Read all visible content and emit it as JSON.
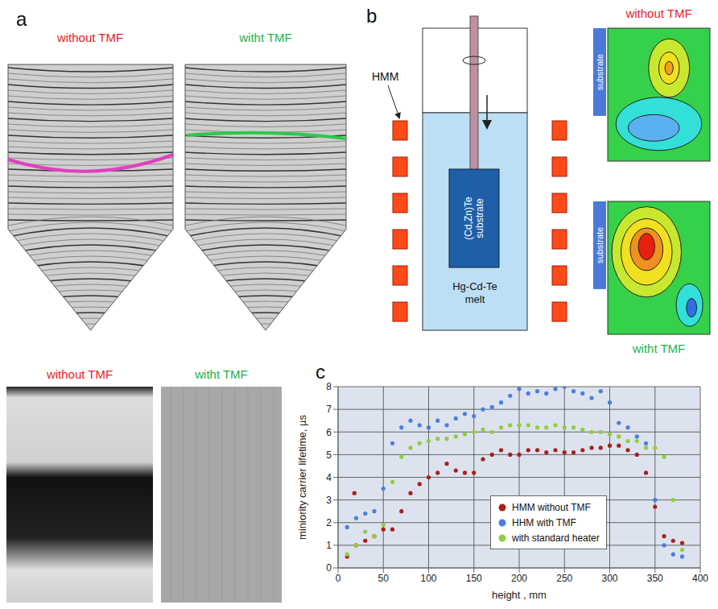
{
  "panel_a": {
    "label": "a",
    "images": [
      {
        "title": "without TMF",
        "color": "#e8202a"
      },
      {
        "title": "witht TMF",
        "color": "#22b24c"
      }
    ]
  },
  "panel_b": {
    "label": "b",
    "heater": "HMM",
    "substrate": "(Cd,Zn)Te substrate",
    "melt": "Hg-Cd-Te melt",
    "flows": [
      {
        "title": "without TMF",
        "color": "#e8202a",
        "substrate": "substrate"
      },
      {
        "title": "witht TMF",
        "color": "#22b24c",
        "substrate": "substrate"
      }
    ]
  },
  "panel_photos": {
    "images": [
      {
        "title": "without TMF",
        "color": "#e8202a"
      },
      {
        "title": "witht TMF",
        "color": "#22b24c"
      }
    ]
  },
  "panel_c": {
    "label": "c"
  },
  "chart_data": {
    "type": "scatter",
    "x_label": "height , mm",
    "y_label": "miniority carrier lifetime, µs",
    "xlim": [
      0,
      400
    ],
    "xticks": [
      0,
      50,
      100,
      150,
      200,
      250,
      300,
      350,
      400
    ],
    "ylim": [
      0,
      8
    ],
    "yticks": [
      0,
      1,
      2,
      3,
      4,
      5,
      6,
      7,
      8
    ],
    "grid": true,
    "legend": "lower right",
    "series": [
      {
        "name": "HMM without TMF",
        "color": "#a8201a",
        "marker": "circle",
        "x": [
          10,
          18,
          20,
          30,
          40,
          50,
          60,
          70,
          80,
          90,
          100,
          110,
          120,
          130,
          140,
          150,
          160,
          170,
          180,
          190,
          200,
          210,
          220,
          230,
          240,
          250,
          260,
          270,
          280,
          290,
          300,
          310,
          320,
          330,
          340,
          350,
          360,
          370,
          380
        ],
        "values": [
          0.5,
          3.3,
          1.0,
          1.2,
          1.4,
          1.7,
          1.7,
          2.5,
          3.3,
          3.7,
          4.0,
          4.2,
          4.6,
          4.3,
          4.2,
          4.2,
          4.8,
          5.0,
          5.2,
          5.0,
          5.0,
          5.2,
          5.2,
          5.1,
          5.2,
          5.1,
          5.1,
          5.2,
          5.3,
          5.3,
          5.4,
          5.4,
          5.2,
          5.0,
          4.2,
          2.7,
          1.4,
          1.2,
          1.1
        ]
      },
      {
        "name": "HHM with TMF",
        "color": "#4a7fe0",
        "marker": "circle",
        "x": [
          10,
          20,
          30,
          40,
          50,
          60,
          70,
          80,
          90,
          100,
          110,
          120,
          130,
          140,
          150,
          160,
          170,
          180,
          190,
          200,
          210,
          220,
          230,
          240,
          250,
          260,
          270,
          280,
          290,
          300,
          310,
          320,
          330,
          340,
          350,
          360,
          370,
          380
        ],
        "values": [
          1.8,
          2.2,
          2.4,
          2.5,
          3.5,
          5.5,
          6.2,
          6.5,
          6.3,
          6.2,
          6.5,
          6.3,
          6.6,
          6.8,
          6.7,
          7.0,
          7.1,
          7.3,
          7.6,
          7.9,
          7.7,
          7.8,
          7.7,
          7.9,
          8.0,
          7.8,
          7.7,
          7.5,
          7.8,
          7.3,
          6.4,
          6.2,
          5.8,
          5.5,
          3.0,
          1.0,
          0.6,
          0.5
        ]
      },
      {
        "name": "with standard heater",
        "color": "#8fce3f",
        "marker": "circle",
        "x": [
          10,
          20,
          30,
          40,
          50,
          60,
          70,
          80,
          90,
          100,
          110,
          120,
          130,
          140,
          150,
          160,
          170,
          180,
          190,
          200,
          210,
          220,
          230,
          240,
          250,
          260,
          270,
          280,
          290,
          300,
          310,
          320,
          330,
          340,
          350,
          360,
          370,
          380
        ],
        "values": [
          0.6,
          1.0,
          1.6,
          1.4,
          1.9,
          3.8,
          4.9,
          5.3,
          5.5,
          5.6,
          5.7,
          5.7,
          5.8,
          5.9,
          6.0,
          6.1,
          6.0,
          6.2,
          6.3,
          6.3,
          6.3,
          6.2,
          6.2,
          6.3,
          6.2,
          6.2,
          6.1,
          6.0,
          6.0,
          5.9,
          5.8,
          5.6,
          5.6,
          5.3,
          5.3,
          4.9,
          3.0,
          0.8
        ]
      }
    ]
  }
}
